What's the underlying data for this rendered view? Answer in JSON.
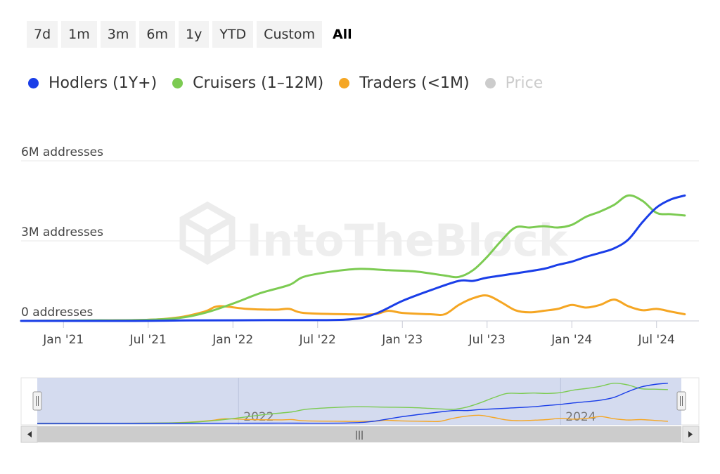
{
  "range_buttons": [
    "7d",
    "1m",
    "3m",
    "6m",
    "1y",
    "YTD",
    "Custom",
    "All"
  ],
  "active_range": "All",
  "legend": [
    {
      "label": "Hodlers (1Y+)",
      "color": "#1a3ee8",
      "muted": false
    },
    {
      "label": "Cruisers (1–12M)",
      "color": "#7ccb52",
      "muted": false
    },
    {
      "label": "Traders (<1M)",
      "color": "#f5a623",
      "muted": false
    },
    {
      "label": "Price",
      "color": "#cccccc",
      "muted": true
    }
  ],
  "watermark": "IntoTheBlock",
  "navigator": {
    "year_labels": [
      "2022",
      "2024"
    ],
    "handle_glyph": "|||"
  },
  "chart_data": {
    "type": "line",
    "x_unit": "month",
    "x_range": [
      "2020-10",
      "2024-10"
    ],
    "y_unit": "millions of addresses",
    "ylim": [
      0,
      6
    ],
    "y_ticks": [
      {
        "value": 0,
        "label": "0 addresses"
      },
      {
        "value": 3,
        "label": "3M addresses"
      },
      {
        "value": 6,
        "label": "6M addresses"
      }
    ],
    "x_ticks": [
      {
        "date": "2021-01",
        "label": "Jan '21"
      },
      {
        "date": "2021-07",
        "label": "Jul '21"
      },
      {
        "date": "2022-01",
        "label": "Jan '22"
      },
      {
        "date": "2022-07",
        "label": "Jul '22"
      },
      {
        "date": "2023-01",
        "label": "Jan '23"
      },
      {
        "date": "2023-07",
        "label": "Jul '23"
      },
      {
        "date": "2024-01",
        "label": "Jan '24"
      },
      {
        "date": "2024-07",
        "label": "Jul '24"
      }
    ],
    "series": [
      {
        "name": "Hodlers (1Y+)",
        "color": "#1a3ee8",
        "points": [
          [
            "2020-10",
            0
          ],
          [
            "2021-06",
            0
          ],
          [
            "2021-10",
            0.02
          ],
          [
            "2022-04",
            0.03
          ],
          [
            "2022-09",
            0.05
          ],
          [
            "2022-11",
            0.25
          ],
          [
            "2023-01",
            0.75
          ],
          [
            "2023-03",
            1.15
          ],
          [
            "2023-05",
            1.5
          ],
          [
            "2023-06",
            1.5
          ],
          [
            "2023-07",
            1.62
          ],
          [
            "2023-09",
            1.78
          ],
          [
            "2023-11",
            1.95
          ],
          [
            "2023-12",
            2.1
          ],
          [
            "2024-01",
            2.22
          ],
          [
            "2024-02",
            2.4
          ],
          [
            "2024-03",
            2.55
          ],
          [
            "2024-04",
            2.72
          ],
          [
            "2024-05",
            3.05
          ],
          [
            "2024-06",
            3.7
          ],
          [
            "2024-07",
            4.25
          ],
          [
            "2024-08",
            4.55
          ],
          [
            "2024-09",
            4.7
          ]
        ]
      },
      {
        "name": "Cruisers (1–12M)",
        "color": "#7ccb52",
        "points": [
          [
            "2020-10",
            0
          ],
          [
            "2021-03",
            0.02
          ],
          [
            "2021-06",
            0.03
          ],
          [
            "2021-09",
            0.1
          ],
          [
            "2021-11",
            0.3
          ],
          [
            "2022-01",
            0.65
          ],
          [
            "2022-03",
            1.05
          ],
          [
            "2022-05",
            1.35
          ],
          [
            "2022-06",
            1.65
          ],
          [
            "2022-08",
            1.85
          ],
          [
            "2022-10",
            1.95
          ],
          [
            "2022-12",
            1.9
          ],
          [
            "2023-02",
            1.85
          ],
          [
            "2023-04",
            1.7
          ],
          [
            "2023-05",
            1.65
          ],
          [
            "2023-06",
            1.9
          ],
          [
            "2023-07",
            2.4
          ],
          [
            "2023-08",
            3.0
          ],
          [
            "2023-09",
            3.5
          ],
          [
            "2023-10",
            3.5
          ],
          [
            "2023-11",
            3.55
          ],
          [
            "2023-12",
            3.5
          ],
          [
            "2024-01",
            3.6
          ],
          [
            "2024-02",
            3.9
          ],
          [
            "2024-03",
            4.1
          ],
          [
            "2024-04",
            4.35
          ],
          [
            "2024-05",
            4.7
          ],
          [
            "2024-06",
            4.5
          ],
          [
            "2024-07",
            4.05
          ],
          [
            "2024-08",
            4.0
          ],
          [
            "2024-09",
            3.95
          ]
        ]
      },
      {
        "name": "Traders (<1M)",
        "color": "#f5a623",
        "points": [
          [
            "2020-10",
            0
          ],
          [
            "2021-06",
            0.03
          ],
          [
            "2021-09",
            0.12
          ],
          [
            "2021-11",
            0.35
          ],
          [
            "2021-12",
            0.55
          ],
          [
            "2022-02",
            0.45
          ],
          [
            "2022-04",
            0.42
          ],
          [
            "2022-05",
            0.45
          ],
          [
            "2022-06",
            0.3
          ],
          [
            "2022-09",
            0.25
          ],
          [
            "2022-11",
            0.25
          ],
          [
            "2022-12",
            0.38
          ],
          [
            "2023-01",
            0.3
          ],
          [
            "2023-03",
            0.25
          ],
          [
            "2023-04",
            0.25
          ],
          [
            "2023-05",
            0.6
          ],
          [
            "2023-06",
            0.85
          ],
          [
            "2023-07",
            0.95
          ],
          [
            "2023-08",
            0.7
          ],
          [
            "2023-09",
            0.4
          ],
          [
            "2023-10",
            0.32
          ],
          [
            "2023-11",
            0.38
          ],
          [
            "2023-12",
            0.45
          ],
          [
            "2024-01",
            0.6
          ],
          [
            "2024-02",
            0.5
          ],
          [
            "2024-03",
            0.6
          ],
          [
            "2024-04",
            0.8
          ],
          [
            "2024-05",
            0.55
          ],
          [
            "2024-06",
            0.4
          ],
          [
            "2024-07",
            0.45
          ],
          [
            "2024-08",
            0.35
          ],
          [
            "2024-09",
            0.25
          ]
        ]
      }
    ],
    "grid": true,
    "legend_position": "top-left"
  }
}
